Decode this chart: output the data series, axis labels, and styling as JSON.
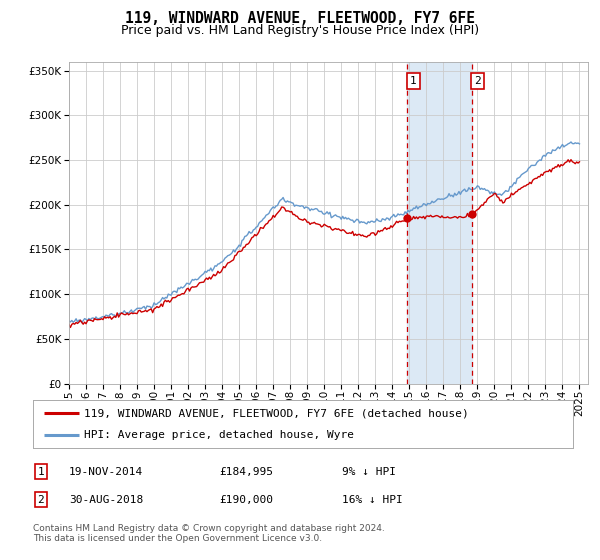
{
  "title": "119, WINDWARD AVENUE, FLEETWOOD, FY7 6FE",
  "subtitle": "Price paid vs. HM Land Registry's House Price Index (HPI)",
  "ylim": [
    0,
    360000
  ],
  "xlim_start": 1995.0,
  "xlim_end": 2025.5,
  "sale1_date": 2014.89,
  "sale1_price": 184995,
  "sale2_date": 2018.67,
  "sale2_price": 190000,
  "shade_color": "#dce9f5",
  "sale_line_color": "#cc0000",
  "hpi_line_color": "#6699cc",
  "legend_house_label": "119, WINDWARD AVENUE, FLEETWOOD, FY7 6FE (detached house)",
  "legend_hpi_label": "HPI: Average price, detached house, Wyre",
  "footer": "Contains HM Land Registry data © Crown copyright and database right 2024.\nThis data is licensed under the Open Government Licence v3.0.",
  "background_color": "#ffffff",
  "grid_color": "#cccccc",
  "title_fontsize": 10.5,
  "subtitle_fontsize": 9,
  "tick_label_fontsize": 7.5,
  "legend_fontsize": 8,
  "annotation_fontsize": 8,
  "footer_fontsize": 6.5
}
